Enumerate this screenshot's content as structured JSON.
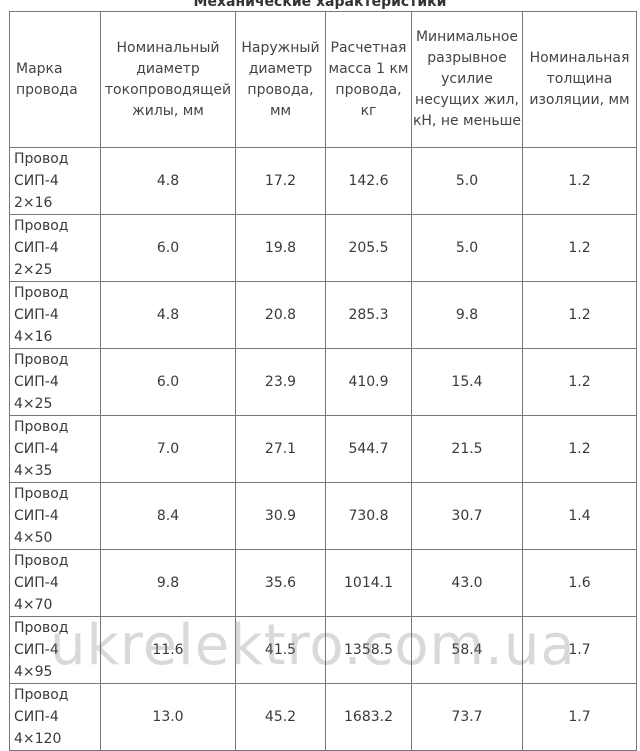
{
  "table": {
    "caption": "Механические характеристики",
    "headers": [
      "Марка провода",
      "Номинальный диаметр токопроводящей жилы, мм",
      "Наружный диаметр провода, мм",
      "Расчетная масса 1 км провода, кг",
      "Минимальное разрывное усилие несущих жил, кН, не меньше",
      "Номинальная толщина изоляции, мм"
    ],
    "rows": [
      {
        "name": [
          "Провод",
          "СИП-4",
          "2×16"
        ],
        "values": [
          "4.8",
          "17.2",
          "142.6",
          "5.0",
          "1.2"
        ]
      },
      {
        "name": [
          "Провод",
          "СИП-4",
          "2×25"
        ],
        "values": [
          "6.0",
          "19.8",
          "205.5",
          "5.0",
          "1.2"
        ]
      },
      {
        "name": [
          "Провод",
          "СИП-4",
          "4×16"
        ],
        "values": [
          "4.8",
          "20.8",
          "285.3",
          "9.8",
          "1.2"
        ]
      },
      {
        "name": [
          "Провод",
          "СИП-4",
          "4×25"
        ],
        "values": [
          "6.0",
          "23.9",
          "410.9",
          "15.4",
          "1.2"
        ]
      },
      {
        "name": [
          "Провод",
          "СИП-4",
          "4×35"
        ],
        "values": [
          "7.0",
          "27.1",
          "544.7",
          "21.5",
          "1.2"
        ]
      },
      {
        "name": [
          "Провод",
          "СИП-4",
          "4×50"
        ],
        "values": [
          "8.4",
          "30.9",
          "730.8",
          "30.7",
          "1.4"
        ]
      },
      {
        "name": [
          "Провод",
          "СИП-4",
          "4×70"
        ],
        "values": [
          "9.8",
          "35.6",
          "1014.1",
          "43.0",
          "1.6"
        ]
      },
      {
        "name": [
          "Провод",
          "СИП-4",
          "4×95"
        ],
        "values": [
          "11.6",
          "41.5",
          "1358.5",
          "58.4",
          "1.7"
        ]
      },
      {
        "name": [
          "Провод",
          "СИП-4",
          "4×120"
        ],
        "values": [
          "13.0",
          "45.2",
          "1683.2",
          "73.7",
          "1.7"
        ]
      }
    ]
  },
  "watermark": "ukrelektro.com.ua"
}
